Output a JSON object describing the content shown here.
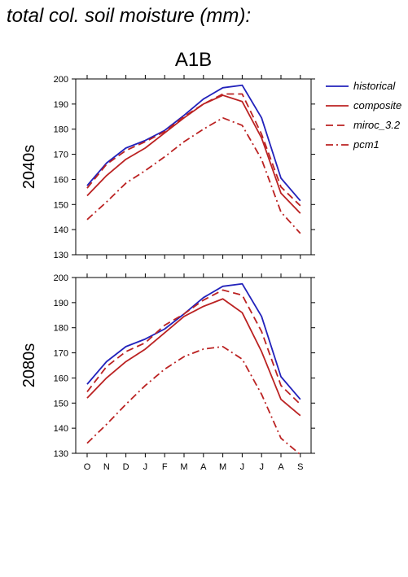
{
  "figure_title": "total col. soil moisture (mm):",
  "legend": [
    {
      "label": "historical",
      "color": "#2222bb",
      "dash": "solid"
    },
    {
      "label": "composite",
      "color": "#bb2222",
      "dash": "solid"
    },
    {
      "label": "miroc_3.2",
      "color": "#bb2222",
      "dash": "dash"
    },
    {
      "label": "pcm1",
      "color": "#bb2222",
      "dash": "dashdot"
    }
  ],
  "chart_data": [
    {
      "type": "line",
      "title": "A1B",
      "ylabel": "2040s",
      "categories": [
        "O",
        "N",
        "D",
        "J",
        "F",
        "M",
        "A",
        "M",
        "J",
        "J",
        "A",
        "S"
      ],
      "ylim": [
        130,
        200
      ],
      "yticks": [
        130,
        140,
        150,
        160,
        170,
        180,
        190,
        200
      ],
      "series": [
        {
          "name": "historical",
          "values": [
            157.5,
            166.5,
            172.5,
            175.5,
            179.5,
            185.5,
            192,
            196.5,
            197.5,
            184.5,
            160.5,
            151.5
          ]
        },
        {
          "name": "composite",
          "values": [
            153.5,
            161.5,
            168,
            172.5,
            178.5,
            184.5,
            190,
            193.5,
            191,
            176.5,
            154.5,
            146.5
          ]
        },
        {
          "name": "miroc_3.2",
          "values": [
            156.5,
            166,
            171.5,
            175,
            179,
            185,
            190,
            194,
            194,
            178,
            157,
            149.5
          ]
        },
        {
          "name": "pcm1",
          "values": [
            144,
            151,
            158.5,
            163.5,
            169,
            175,
            180,
            184.5,
            181.5,
            168,
            147,
            138.5
          ]
        }
      ]
    },
    {
      "type": "line",
      "title": "",
      "ylabel": "2080s",
      "categories": [
        "O",
        "N",
        "D",
        "J",
        "F",
        "M",
        "A",
        "M",
        "J",
        "J",
        "A",
        "S"
      ],
      "ylim": [
        130,
        200
      ],
      "yticks": [
        130,
        140,
        150,
        160,
        170,
        180,
        190,
        200
      ],
      "series": [
        {
          "name": "historical",
          "values": [
            157.5,
            166.5,
            172.5,
            175.5,
            179.5,
            185.5,
            192,
            196.5,
            197.5,
            184.5,
            160.5,
            151.5
          ]
        },
        {
          "name": "composite",
          "values": [
            152,
            160,
            166.5,
            171.5,
            178,
            184.5,
            188.5,
            191.5,
            186,
            170.5,
            151.5,
            145
          ]
        },
        {
          "name": "miroc_3.2",
          "values": [
            154.5,
            164.5,
            170.5,
            174,
            181,
            185.5,
            191,
            195,
            193,
            178.5,
            157,
            149.5
          ]
        },
        {
          "name": "pcm1",
          "values": [
            134,
            141.5,
            149.5,
            157,
            163.5,
            168.5,
            171.5,
            172.5,
            167.5,
            153.5,
            136,
            129.5
          ]
        }
      ]
    }
  ]
}
